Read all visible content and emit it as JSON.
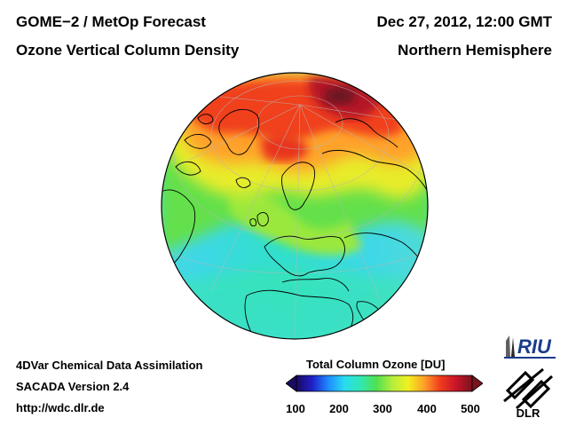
{
  "header": {
    "title_left_1": "GOME−2 / MetOp Forecast",
    "title_left_2": "Ozone Vertical Column Density",
    "title_right_1": "Dec 27, 2012, 12:00 GMT",
    "title_right_2": "Northern Hemisphere"
  },
  "footer": {
    "line1": "4DVar Chemical Data Assimilation",
    "line2": "SACADA Version 2.4",
    "line3": "http://wdc.dlr.de"
  },
  "colorbar": {
    "title": "Total Column Ozone [DU]",
    "ticks": [
      "100",
      "200",
      "300",
      "400",
      "500"
    ],
    "range": [
      100,
      500
    ],
    "colors": [
      "#1a0a60",
      "#2020c8",
      "#1e8cff",
      "#28dcf0",
      "#30e8b4",
      "#50e050",
      "#b4ee3c",
      "#f0f020",
      "#ffa028",
      "#f03c1e",
      "#c81428",
      "#78141e"
    ]
  },
  "logos": {
    "riu": "RIU",
    "dlr": "DLR"
  },
  "icons": [
    "globe-map",
    "riu-logo",
    "dlr-logo"
  ],
  "map": {
    "projection": "orthographic",
    "center_region": "Europe / North Atlantic",
    "ozone_max_region": "Eastern Siberia"
  }
}
